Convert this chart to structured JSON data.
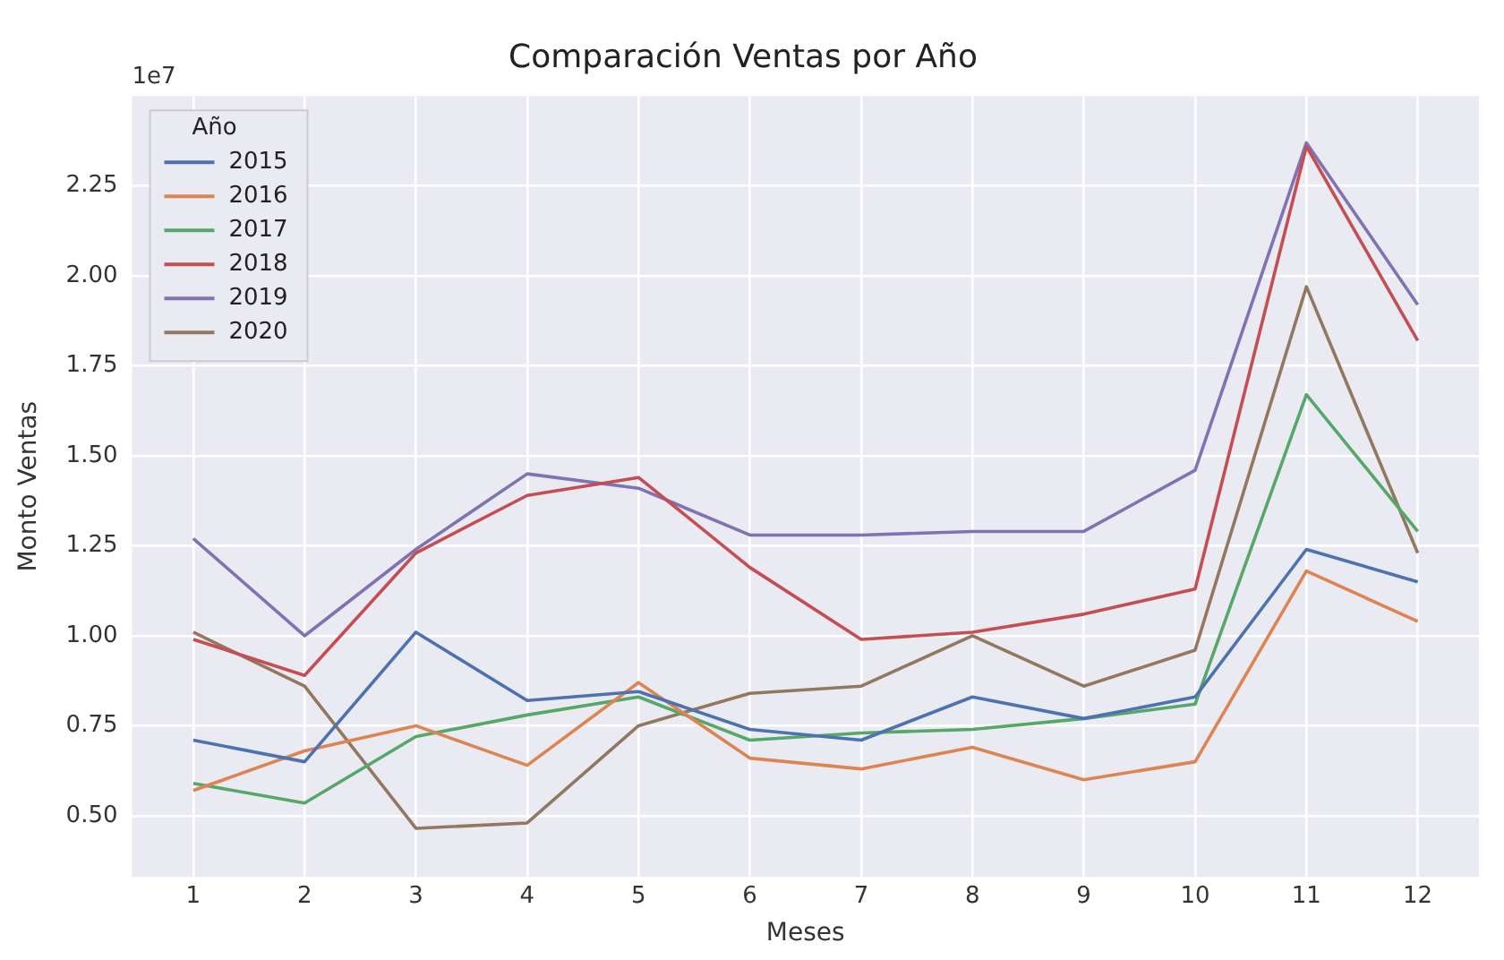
{
  "chart_data": {
    "type": "line",
    "title": "Comparación Ventas por Año",
    "xlabel": "Meses",
    "ylabel": "Monto Ventas",
    "legend_title": "Año",
    "annotations": [
      "1e7"
    ],
    "x": [
      1,
      2,
      3,
      4,
      5,
      6,
      7,
      8,
      9,
      10,
      11,
      12
    ],
    "xlim": [
      0.45,
      12.55
    ],
    "xticks": [
      1,
      2,
      3,
      4,
      5,
      6,
      7,
      8,
      9,
      10,
      11,
      12
    ],
    "ylim": [
      0.33,
      2.5
    ],
    "yticks": [
      {
        "value": 0.5,
        "label": "0.50"
      },
      {
        "value": 0.75,
        "label": "0.75"
      },
      {
        "value": 1,
        "label": "1.00"
      },
      {
        "value": 1.25,
        "label": "1.25"
      },
      {
        "value": 1.5,
        "label": "1.50"
      },
      {
        "value": 1.75,
        "label": "1.75"
      },
      {
        "value": 2,
        "label": "2.00"
      },
      {
        "value": 2.25,
        "label": "2.25"
      }
    ],
    "grid": true,
    "legend": "top left",
    "marker": "none",
    "line_style": "solid",
    "series": [
      {
        "name": "2015",
        "color": "#4c72b0",
        "values": [
          0.71,
          0.65,
          1.01,
          0.82,
          0.845,
          0.74,
          0.71,
          0.83,
          0.77,
          0.83,
          1.24,
          1.15
        ]
      },
      {
        "name": "2016",
        "color": "#dd8452",
        "values": [
          0.57,
          0.68,
          0.75,
          0.64,
          0.87,
          0.66,
          0.63,
          0.69,
          0.6,
          0.65,
          1.18,
          1.04
        ]
      },
      {
        "name": "2017",
        "color": "#55a868",
        "values": [
          0.59,
          0.535,
          0.72,
          0.78,
          0.83,
          0.71,
          0.73,
          0.74,
          0.77,
          0.81,
          1.67,
          1.29
        ]
      },
      {
        "name": "2018",
        "color": "#c44e52",
        "values": [
          0.99,
          0.89,
          1.23,
          1.39,
          1.44,
          1.19,
          0.99,
          1.01,
          1.06,
          1.13,
          2.36,
          1.82
        ]
      },
      {
        "name": "2019",
        "color": "#8172b3",
        "values": [
          1.27,
          1.0,
          1.24,
          1.45,
          1.41,
          1.28,
          1.28,
          1.29,
          1.29,
          1.46,
          2.37,
          1.92
        ]
      },
      {
        "name": "2020",
        "color": "#937860",
        "values": [
          1.01,
          0.86,
          0.465,
          0.48,
          0.75,
          0.84,
          0.86,
          1.0,
          0.86,
          0.96,
          1.97,
          1.23
        ]
      }
    ]
  }
}
